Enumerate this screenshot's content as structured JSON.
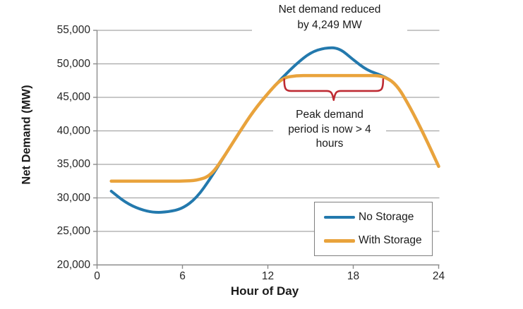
{
  "chart_data": {
    "type": "line",
    "xlabel": "Hour of Day",
    "ylabel": "Net Demand (MW)",
    "x": [
      1,
      2,
      3,
      4,
      5,
      6,
      7,
      8,
      9,
      10,
      11,
      12,
      13,
      14,
      15,
      16,
      17,
      18,
      19,
      20,
      21,
      22,
      23,
      24
    ],
    "series": [
      {
        "name": "No Storage",
        "color": "#2379AD",
        "width": 4,
        "values": [
          31000,
          29300,
          28300,
          27800,
          27900,
          28400,
          30000,
          33000,
          36400,
          39800,
          43000,
          45600,
          47900,
          50000,
          51700,
          52400,
          52400,
          50600,
          49000,
          48300,
          47100,
          43500,
          39300,
          34700
        ]
      },
      {
        "name": "With Storage",
        "color": "#E9A33C",
        "width": 4.5,
        "values": [
          32500,
          32500,
          32500,
          32500,
          32500,
          32500,
          32600,
          33300,
          36400,
          39800,
          43000,
          45600,
          47900,
          48250,
          48250,
          48250,
          48250,
          48250,
          48250,
          48250,
          47100,
          43500,
          39300,
          34700
        ]
      }
    ],
    "xlim": [
      0,
      24
    ],
    "ylim": [
      20000,
      55000
    ],
    "xtick_values": [
      0,
      6,
      12,
      18,
      24
    ],
    "xtick_labels": [
      "0",
      "6",
      "12",
      "18",
      "24"
    ],
    "ytick_values": [
      20000,
      25000,
      30000,
      35000,
      40000,
      45000,
      50000,
      55000
    ],
    "ytick_labels": [
      "20,000",
      "25,000",
      "30,000",
      "35,000",
      "40,000",
      "45,000",
      "50,000",
      "55,000"
    ],
    "grid": "horizontal",
    "gridline_color": "#A6A6A6",
    "axis_color": "#8C8C8C",
    "legend_position": "bottom-right",
    "annotations": {
      "reduction": {
        "lines": [
          "Net demand reduced",
          "by 4,249 MW"
        ]
      },
      "peak_period": {
        "lines": [
          "Peak demand",
          "period is now > 4",
          "hours"
        ]
      },
      "brace": {
        "color": "#BE2B33",
        "from_hour": 13.15,
        "to_hour": 20.1,
        "top_value": 47700,
        "bar_value": 45950,
        "tip_value": 44600
      }
    }
  }
}
